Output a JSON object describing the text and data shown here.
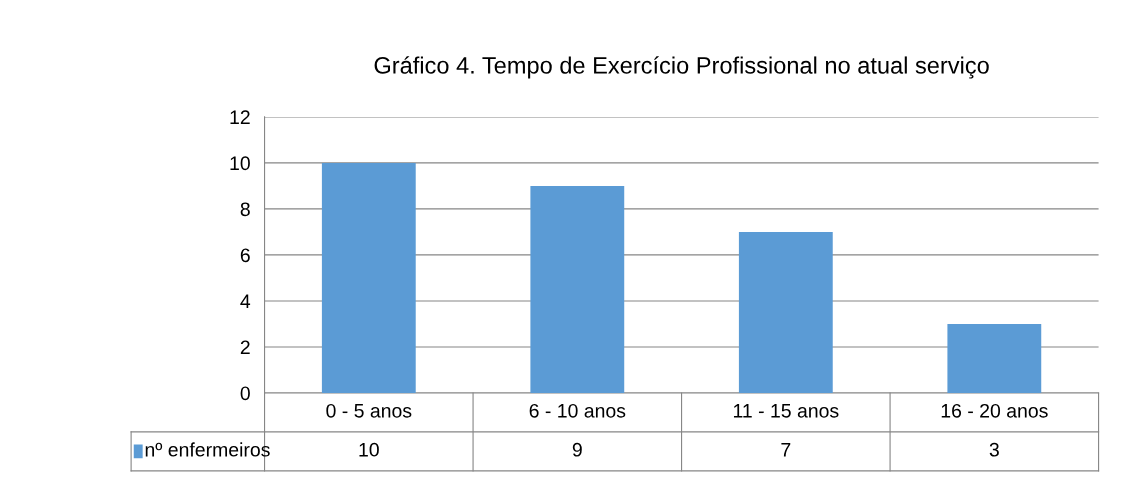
{
  "chart_data": {
    "type": "bar",
    "title": "Gráfico 4. Tempo de Exercício Profissional no atual serviço",
    "categories": [
      "0 - 5 anos",
      "6 - 10 anos",
      "11 - 15 anos",
      "16 - 20 anos"
    ],
    "series": [
      {
        "name": "nº enfermeiros",
        "color": "#5b9bd5",
        "values": [
          10,
          9,
          7,
          3
        ]
      }
    ],
    "ylim": [
      0,
      12
    ],
    "yticks": [
      0,
      2,
      4,
      6,
      8,
      10,
      12
    ],
    "grid": "y",
    "legend": "bottom",
    "data_labels": true
  }
}
